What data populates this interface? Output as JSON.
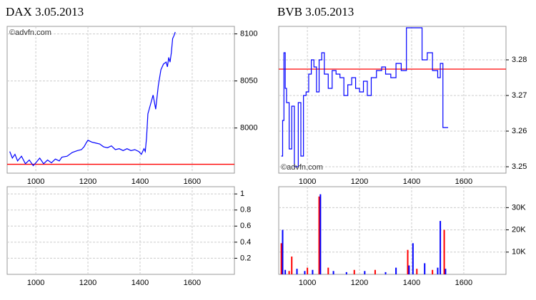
{
  "chart_data": [
    {
      "type": "line",
      "title": "DAX 3.05.2013",
      "annotation": "©advfn.com",
      "annotation_position": "top-left",
      "color": "#0000ff",
      "reference_line": 7961.4,
      "reference_color": "#ff0000",
      "x": [
        900,
        910,
        920,
        930,
        945,
        960,
        975,
        990,
        1000,
        1015,
        1030,
        1045,
        1060,
        1075,
        1090,
        1100,
        1120,
        1140,
        1160,
        1175,
        1185,
        1195,
        1200,
        1215,
        1230,
        1245,
        1260,
        1275,
        1290,
        1305,
        1320,
        1335,
        1350,
        1365,
        1380,
        1395,
        1405,
        1415,
        1420,
        1425,
        1430,
        1440,
        1450,
        1460,
        1470,
        1480,
        1490,
        1500,
        1505,
        1510,
        1515,
        1520,
        1525,
        1530,
        1535
      ],
      "values": [
        7975,
        7968,
        7972,
        7965,
        7970,
        7962,
        7966,
        7960,
        7963,
        7968,
        7962,
        7966,
        7963,
        7967,
        7965,
        7969,
        7970,
        7974,
        7976,
        7977,
        7980,
        7985,
        7987,
        7985,
        7984,
        7983,
        7980,
        7979,
        7981,
        7977,
        7978,
        7976,
        7978,
        7976,
        7977,
        7975,
        7972,
        7978,
        7975,
        7990,
        8015,
        8025,
        8035,
        8020,
        8045,
        8062,
        8068,
        8070,
        8065,
        8075,
        8070,
        8080,
        8095,
        8098,
        8102
      ],
      "xlim": [
        890,
        1762
      ],
      "xticks": [
        1000,
        1200,
        1400,
        1600
      ],
      "ylim": [
        7952,
        8108
      ],
      "yticks": [
        8000,
        8050,
        8100
      ]
    },
    {
      "type": "line",
      "title": "BVB 3.05.2013",
      "annotation": "©advfn.com",
      "annotation_position": "bottom-left",
      "color": "#0000ff",
      "reference_line": 3.2774,
      "reference_color": "#ff0000",
      "step": true,
      "x": [
        900,
        905,
        910,
        915,
        920,
        930,
        940,
        950,
        965,
        975,
        985,
        995,
        1005,
        1015,
        1025,
        1035,
        1045,
        1055,
        1065,
        1080,
        1095,
        1110,
        1125,
        1140,
        1155,
        1170,
        1185,
        1200,
        1215,
        1230,
        1245,
        1265,
        1285,
        1300,
        1320,
        1340,
        1360,
        1380,
        1400,
        1420,
        1440,
        1460,
        1480,
        1500,
        1510,
        1520,
        1540
      ],
      "values": [
        3.253,
        3.263,
        3.282,
        3.272,
        3.268,
        3.255,
        3.267,
        3.25,
        3.268,
        3.253,
        3.27,
        3.271,
        3.276,
        3.28,
        3.278,
        3.271,
        3.28,
        3.282,
        3.276,
        3.272,
        3.277,
        3.276,
        3.275,
        3.27,
        3.273,
        3.275,
        3.272,
        3.271,
        3.274,
        3.27,
        3.275,
        3.277,
        3.278,
        3.276,
        3.275,
        3.279,
        3.277,
        3.289,
        3.289,
        3.289,
        3.28,
        3.282,
        3.277,
        3.275,
        3.279,
        3.261,
        3.261
      ],
      "xlim": [
        890,
        1762
      ],
      "xticks": [
        1000,
        1200,
        1400,
        1600
      ],
      "ylim": [
        3.2482,
        3.2894
      ],
      "yticks": [
        3.25,
        3.26,
        3.27,
        3.28
      ]
    },
    {
      "type": "bar",
      "x": [],
      "values": [],
      "colors": [],
      "xlim": [
        890,
        1762
      ],
      "xticks": [
        1000,
        1200,
        1400,
        1600
      ],
      "ylim": [
        0,
        1.09
      ],
      "yticks": [
        0.2,
        0.4,
        0.6,
        0.8,
        1
      ]
    },
    {
      "type": "bar",
      "x": [
        900,
        905,
        915,
        930,
        940,
        960,
        990,
        1000,
        1020,
        1045,
        1050,
        1080,
        1100,
        1150,
        1180,
        1220,
        1260,
        1300,
        1340,
        1385,
        1390,
        1405,
        1420,
        1450,
        1480,
        1500,
        1510,
        1525,
        1530
      ],
      "values": [
        14000,
        20000,
        2000,
        1500,
        8000,
        2500,
        1500,
        3000,
        2000,
        35000,
        36000,
        3000,
        1500,
        1000,
        2000,
        1500,
        2000,
        1000,
        3000,
        11000,
        4000,
        14000,
        2500,
        5000,
        2000,
        3000,
        24000,
        20000,
        2500
      ],
      "colors": [
        "#ff0000",
        "#0000ff",
        "#0000ff",
        "#ff0000",
        "#ff0000",
        "#0000ff",
        "#0000ff",
        "#ff0000",
        "#0000ff",
        "#ff0000",
        "#0000ff",
        "#ff0000",
        "#0000ff",
        "#0000ff",
        "#ff0000",
        "#0000ff",
        "#ff0000",
        "#0000ff",
        "#0000ff",
        "#ff0000",
        "#0000ff",
        "#0000ff",
        "#ff0000",
        "#0000ff",
        "#ff0000",
        "#0000ff",
        "#0000ff",
        "#ff0000",
        "#0000ff"
      ],
      "xlim": [
        890,
        1762
      ],
      "xticks": [
        1000,
        1200,
        1400,
        1600
      ],
      "ylim": [
        0,
        39400
      ],
      "yticks": [
        {
          "value": 10000,
          "label": "10K"
        },
        {
          "value": 20000,
          "label": "20K"
        },
        {
          "value": 30000,
          "label": "30K"
        }
      ]
    }
  ]
}
